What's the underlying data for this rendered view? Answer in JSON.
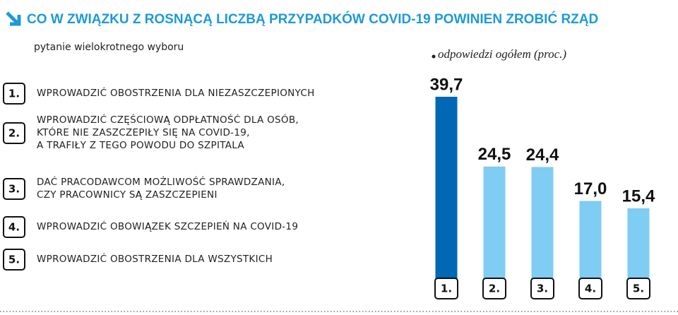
{
  "chart_data": {
    "type": "bar",
    "title": "CO W ZWIĄZKU Z ROSNĄCĄ LICZBĄ PRZYPADKÓW COVID-19 POWINIEN ZROBIĆ RZĄD",
    "subtitle": "pytanie wielokrotnego wyboru",
    "note": "odpowiedzi ogółem (proc.)",
    "categories": [
      "1.",
      "2.",
      "3.",
      "4.",
      "5."
    ],
    "items": [
      [
        "WPROWADZIĆ OBOSTRZENIA DLA NIEZASZCZEPIONYCH"
      ],
      [
        "WPROWADZIĆ CZĘŚCIOWĄ ODPŁATNOŚĆ DLA OSÓB,",
        "KTÓRE NIE ZASZCZEPIŁY SIĘ NA COVID-19,",
        "A TRAFIŁY Z TEGO POWODU DO SZPITALA"
      ],
      [
        "DAĆ PRACODAWCOM MOŻLIWOŚĆ SPRAWDZANIA,",
        "CZY PRACOWNICY SĄ ZASZCZEPIENI"
      ],
      [
        "WPROWADZIĆ OBOWIĄZEK SZCZEPIEŃ NA COVID-19"
      ],
      [
        "WPROWADZIĆ OBOSTRZENIA DLA WSZYSTKICH"
      ]
    ],
    "values": [
      39.7,
      24.5,
      24.4,
      17.0,
      15.4
    ],
    "value_labels": [
      "39,7",
      "24,5",
      "24,4",
      "17,0",
      "15,4"
    ],
    "colors": [
      "#0068b4",
      "#7fcdf2",
      "#7fcdf2",
      "#7fcdf2",
      "#7fcdf2"
    ]
  }
}
